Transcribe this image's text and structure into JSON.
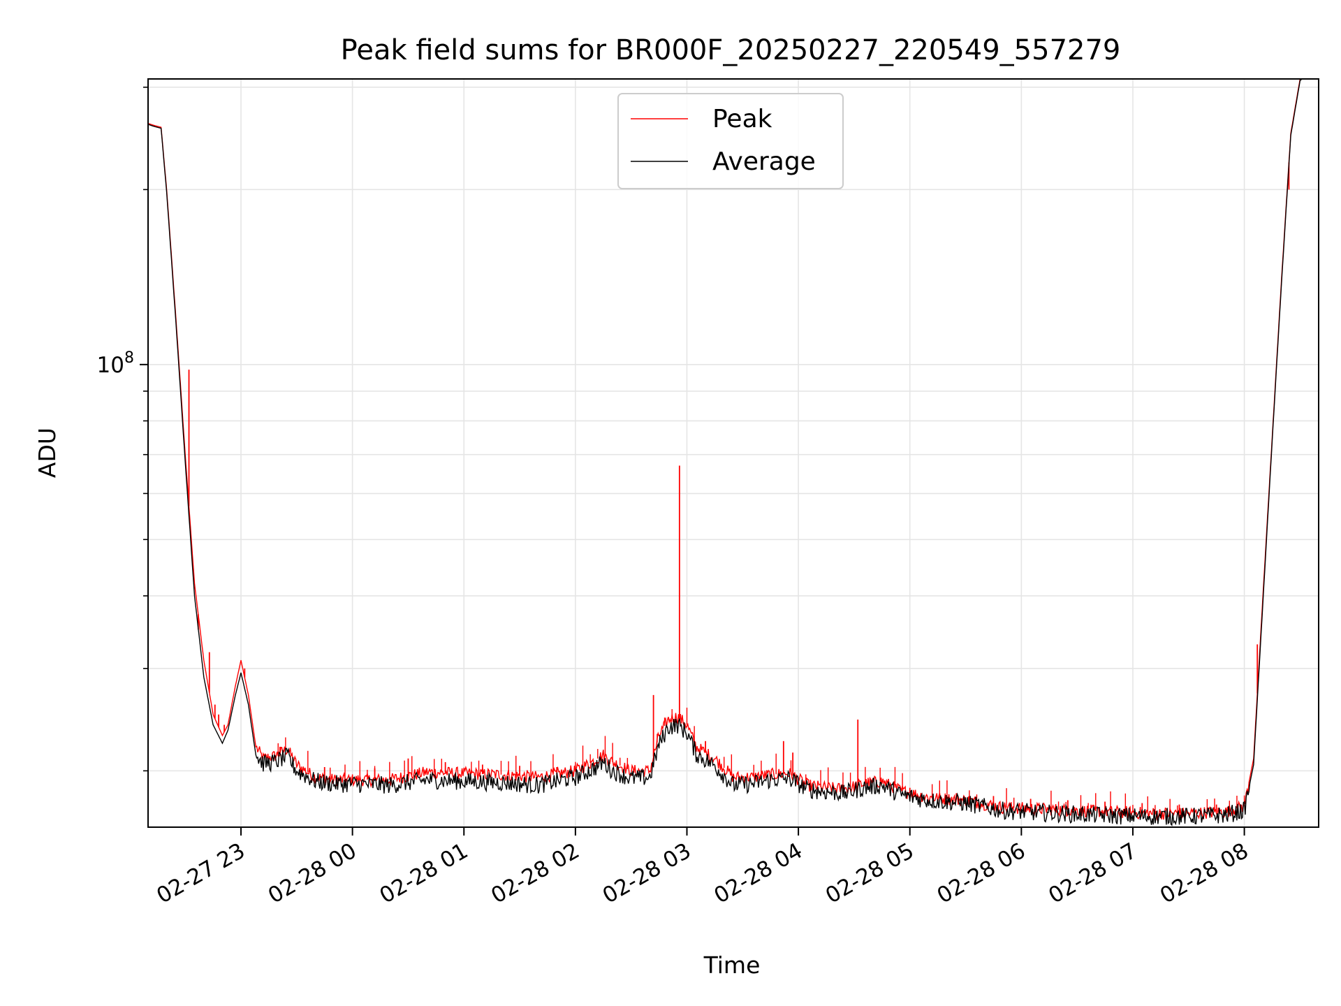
{
  "chart_data": {
    "type": "line",
    "title": "Peak field sums for BR000F_20250227_220549_557279",
    "xlabel": "Time",
    "ylabel": "ADU",
    "yscale": "log",
    "grid": true,
    "legend_position": "top-center",
    "x_date": "2025-02-28",
    "xlim": [
      "22:10",
      "08:40"
    ],
    "ylim": [
      16000000,
      310000000
    ],
    "x_ticks": [
      "23:00",
      "00:00",
      "01:00",
      "02:00",
      "03:00",
      "04:00",
      "05:00",
      "06:00",
      "07:00",
      "08:00"
    ],
    "x_tick_labels": [
      "02-27 23",
      "02-28 00",
      "02-28 01",
      "02-28 02",
      "02-28 03",
      "02-28 04",
      "02-28 05",
      "02-28 06",
      "02-28 07",
      "02-28 08"
    ],
    "y_major_ticks": [
      100000000
    ],
    "y_major_tick_label_base": "10",
    "y_major_tick_label_exp": "8",
    "y_minor_ticks": [
      20000000,
      30000000,
      40000000,
      50000000,
      60000000,
      70000000,
      80000000,
      90000000,
      200000000,
      300000000
    ],
    "series": [
      {
        "name": "Peak",
        "color": "#ff0000",
        "points": [
          [
            "22:10",
            260000000
          ],
          [
            "22:13",
            258000000
          ],
          [
            "22:17",
            256000000
          ],
          [
            "22:20",
            200000000
          ],
          [
            "22:25",
            120000000
          ],
          [
            "22:30",
            70000000
          ],
          [
            "22:35",
            42000000
          ],
          [
            "22:40",
            31000000
          ],
          [
            "22:45",
            25000000
          ],
          [
            "22:50",
            23000000
          ],
          [
            "22:53",
            24000000
          ],
          [
            "22:57",
            28000000
          ],
          [
            "23:00",
            31000000
          ],
          [
            "23:04",
            27000000
          ],
          [
            "23:08",
            22000000
          ],
          [
            "23:12",
            21000000
          ],
          [
            "23:18",
            21200000
          ],
          [
            "23:25",
            21800000
          ],
          [
            "23:30",
            20500000
          ],
          [
            "23:40",
            19500000
          ],
          [
            "23:50",
            19300000
          ],
          [
            "00:00",
            19300000
          ],
          [
            "00:20",
            19300000
          ],
          [
            "00:40",
            19900000
          ],
          [
            "01:00",
            19800000
          ],
          [
            "01:20",
            19700000
          ],
          [
            "01:40",
            19500000
          ],
          [
            "02:00",
            20000000
          ],
          [
            "02:10",
            20800000
          ],
          [
            "02:15",
            21300000
          ],
          [
            "02:20",
            20700000
          ],
          [
            "02:30",
            20000000
          ],
          [
            "02:40",
            20000000
          ],
          [
            "02:45",
            23000000
          ],
          [
            "02:50",
            24500000
          ],
          [
            "02:55",
            24800000
          ],
          [
            "03:00",
            24000000
          ],
          [
            "03:05",
            22000000
          ],
          [
            "03:15",
            21000000
          ],
          [
            "03:25",
            19500000
          ],
          [
            "03:35",
            19500000
          ],
          [
            "03:45",
            19700000
          ],
          [
            "03:55",
            19800000
          ],
          [
            "04:05",
            18900000
          ],
          [
            "04:15",
            18700000
          ],
          [
            "04:25",
            18600000
          ],
          [
            "04:35",
            19000000
          ],
          [
            "04:45",
            19200000
          ],
          [
            "04:55",
            18500000
          ],
          [
            "05:10",
            18000000
          ],
          [
            "05:30",
            17800000
          ],
          [
            "05:50",
            17300000
          ],
          [
            "06:10",
            17200000
          ],
          [
            "06:30",
            17100000
          ],
          [
            "06:50",
            17000000
          ],
          [
            "07:10",
            16900000
          ],
          [
            "07:30",
            16900000
          ],
          [
            "07:50",
            17000000
          ],
          [
            "08:00",
            17400000
          ],
          [
            "08:05",
            21000000
          ],
          [
            "08:10",
            40000000
          ],
          [
            "08:15",
            75000000
          ],
          [
            "08:20",
            140000000
          ],
          [
            "08:25",
            250000000
          ],
          [
            "08:30",
            310000000
          ],
          [
            "08:40",
            330000000
          ]
        ],
        "spikes": [
          [
            "22:32",
            98000000
          ],
          [
            "22:37",
            35000000
          ],
          [
            "22:43",
            32000000
          ],
          [
            "22:46",
            26000000
          ],
          [
            "22:48",
            25000000
          ],
          [
            "22:51",
            24000000
          ],
          [
            "23:02",
            30000000
          ],
          [
            "23:21",
            22000000
          ],
          [
            "23:45",
            20300000
          ],
          [
            "00:12",
            20200000
          ],
          [
            "00:30",
            21000000
          ],
          [
            "00:50",
            20700000
          ],
          [
            "01:10",
            20500000
          ],
          [
            "01:30",
            20400000
          ],
          [
            "01:50",
            20300000
          ],
          [
            "02:42",
            27000000
          ],
          [
            "02:56",
            67000000
          ],
          [
            "03:10",
            22500000
          ],
          [
            "03:52",
            22500000
          ],
          [
            "03:57",
            21500000
          ],
          [
            "04:32",
            24500000
          ],
          [
            "05:00",
            18700000
          ],
          [
            "05:25",
            18300000
          ],
          [
            "05:45",
            18100000
          ],
          [
            "06:05",
            17900000
          ],
          [
            "06:25",
            17800000
          ],
          [
            "06:45",
            17700000
          ],
          [
            "07:05",
            17600000
          ],
          [
            "07:25",
            17500000
          ],
          [
            "07:45",
            17500000
          ],
          [
            "08:07",
            33000000
          ],
          [
            "08:24",
            200000000
          ]
        ]
      },
      {
        "name": "Average",
        "color": "#000000",
        "points": [
          [
            "22:10",
            259000000
          ],
          [
            "22:13",
            257000000
          ],
          [
            "22:17",
            255000000
          ],
          [
            "22:20",
            198000000
          ],
          [
            "22:25",
            118000000
          ],
          [
            "22:30",
            68000000
          ],
          [
            "22:35",
            40000000
          ],
          [
            "22:40",
            29000000
          ],
          [
            "22:45",
            24000000
          ],
          [
            "22:50",
            22300000
          ],
          [
            "22:53",
            23500000
          ],
          [
            "22:57",
            27000000
          ],
          [
            "23:00",
            29500000
          ],
          [
            "23:04",
            26000000
          ],
          [
            "23:08",
            21300000
          ],
          [
            "23:12",
            20600000
          ],
          [
            "23:18",
            20700000
          ],
          [
            "23:25",
            21200000
          ],
          [
            "23:30",
            20000000
          ],
          [
            "23:40",
            19200000
          ],
          [
            "23:50",
            19000000
          ],
          [
            "00:00",
            19000000
          ],
          [
            "00:20",
            18900000
          ],
          [
            "00:40",
            19300000
          ],
          [
            "01:00",
            19200000
          ],
          [
            "01:20",
            19100000
          ],
          [
            "01:40",
            18900000
          ],
          [
            "02:00",
            19500000
          ],
          [
            "02:10",
            20200000
          ],
          [
            "02:15",
            20700000
          ],
          [
            "02:20",
            20000000
          ],
          [
            "02:30",
            19400000
          ],
          [
            "02:40",
            19500000
          ],
          [
            "02:45",
            22200000
          ],
          [
            "02:50",
            23800000
          ],
          [
            "02:55",
            24000000
          ],
          [
            "03:00",
            23300000
          ],
          [
            "03:05",
            21400000
          ],
          [
            "03:15",
            20400000
          ],
          [
            "03:25",
            18900000
          ],
          [
            "03:35",
            19000000
          ],
          [
            "03:45",
            19300000
          ],
          [
            "03:55",
            19400000
          ],
          [
            "04:05",
            18600000
          ],
          [
            "04:15",
            18400000
          ],
          [
            "04:25",
            18300000
          ],
          [
            "04:35",
            18700000
          ],
          [
            "04:45",
            18900000
          ],
          [
            "04:55",
            18200000
          ],
          [
            "05:10",
            17800000
          ],
          [
            "05:30",
            17600000
          ],
          [
            "05:50",
            17100000
          ],
          [
            "06:10",
            16950000
          ],
          [
            "06:30",
            16850000
          ],
          [
            "06:50",
            16750000
          ],
          [
            "07:10",
            16700000
          ],
          [
            "07:30",
            16700000
          ],
          [
            "07:50",
            16800000
          ],
          [
            "08:00",
            17100000
          ],
          [
            "08:05",
            20500000
          ],
          [
            "08:10",
            39000000
          ],
          [
            "08:15",
            74000000
          ],
          [
            "08:20",
            138000000
          ],
          [
            "08:25",
            248000000
          ],
          [
            "08:30",
            308000000
          ],
          [
            "08:40",
            328000000
          ]
        ]
      }
    ]
  }
}
